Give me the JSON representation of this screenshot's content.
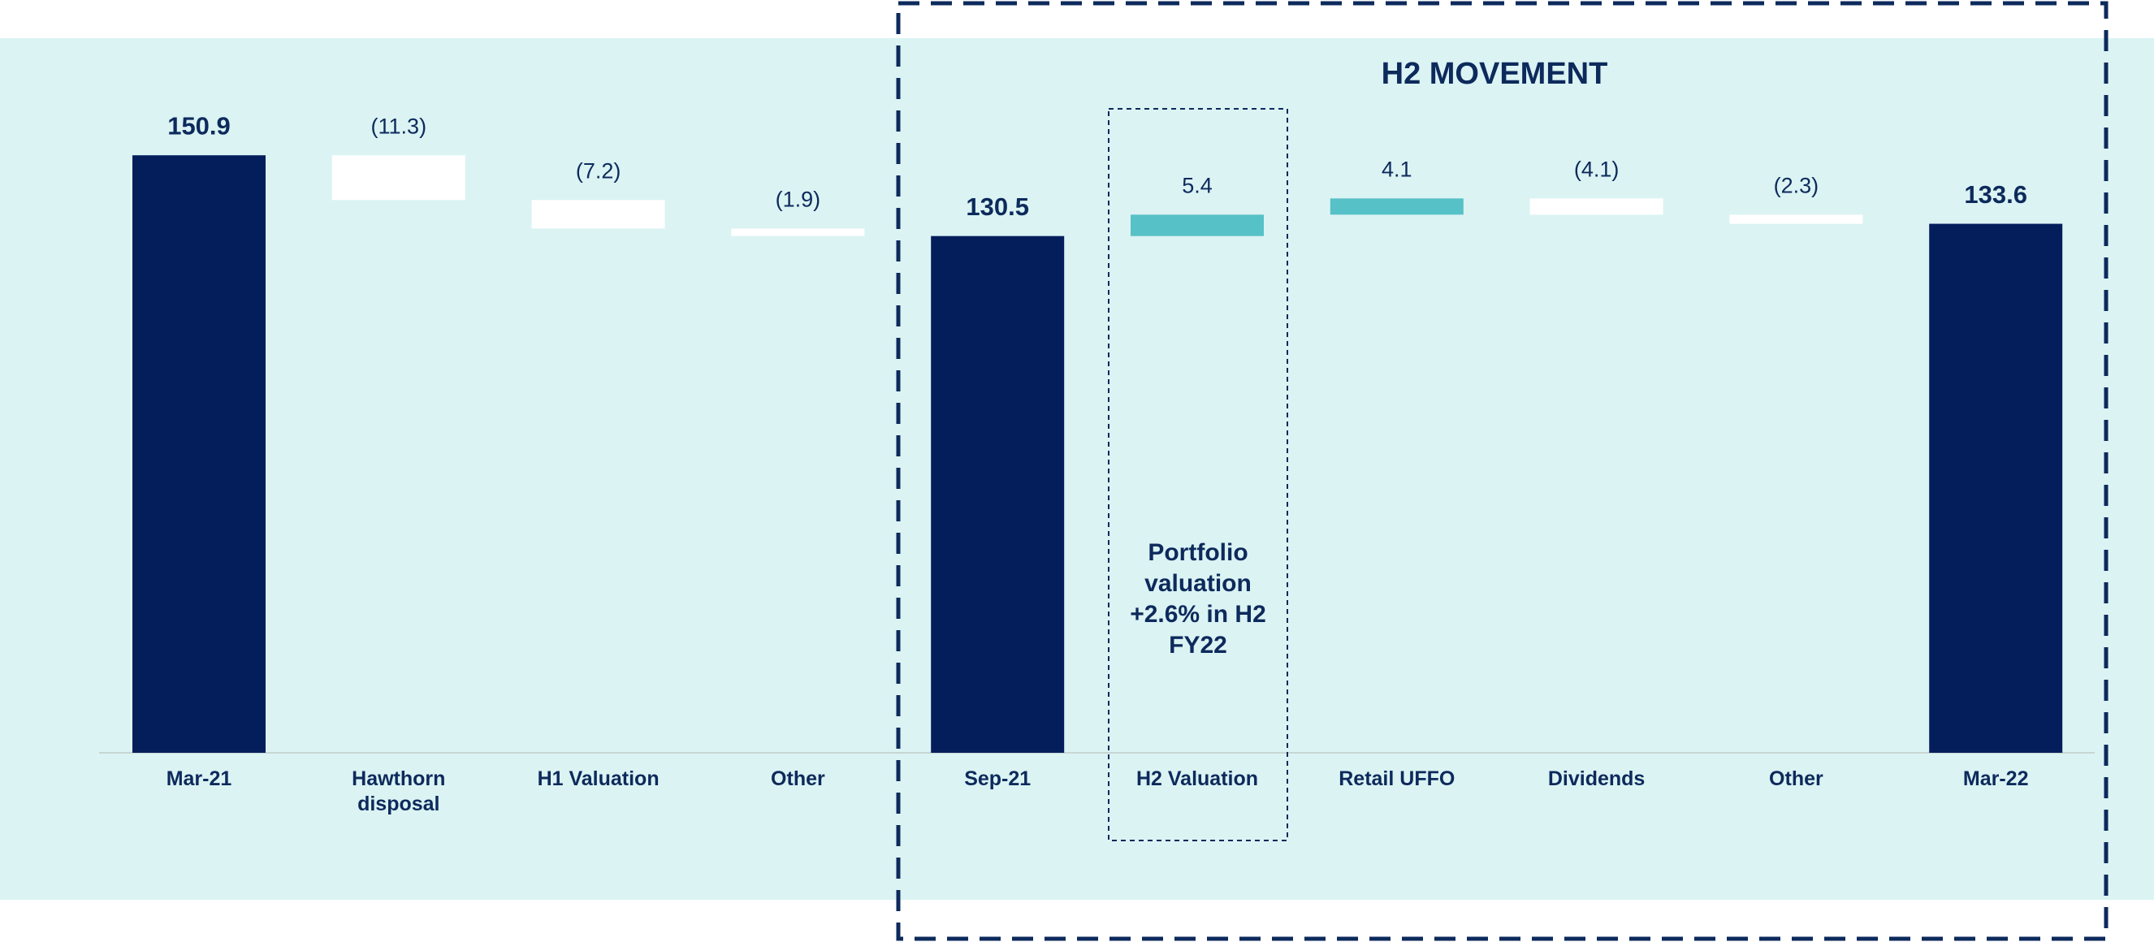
{
  "chart_data": {
    "type": "waterfall",
    "categories": [
      "Mar-21",
      "Hawthorn disposal",
      "H1 Valuation",
      "Other",
      "Sep-21",
      "H2 Valuation",
      "Retail UFFO",
      "Dividends",
      "Other",
      "Mar-22"
    ],
    "values": [
      150.9,
      -11.3,
      -7.2,
      -1.9,
      130.5,
      5.4,
      4.1,
      -4.1,
      -2.3,
      133.6
    ],
    "value_labels": [
      "150.9",
      "(11.3)",
      "(7.2)",
      "(1.9)",
      "130.5",
      "5.4",
      "4.1",
      "(4.1)",
      "(2.3)",
      "133.6"
    ],
    "measure": [
      "absolute",
      "relative",
      "relative",
      "relative",
      "absolute",
      "relative",
      "relative",
      "relative",
      "relative",
      "absolute"
    ],
    "colors": {
      "total": "#041e5c",
      "increase": "#56c1c7",
      "decrease": "#ffffff"
    },
    "annotations": [
      "H2 MOVEMENT",
      "Portfolio valuation +2.6% in H2 FY22"
    ]
  }
}
